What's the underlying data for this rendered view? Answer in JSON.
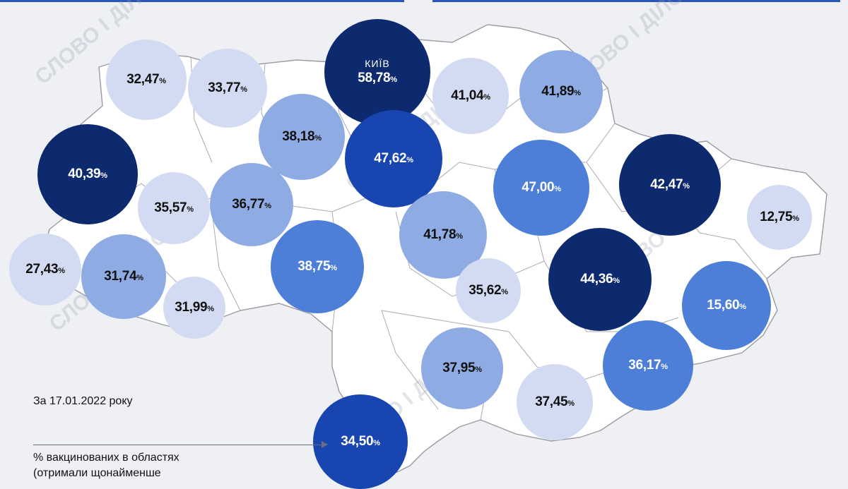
{
  "date_note": "За 17.01.2022 року",
  "legend_text": "% вакцинованих в областях",
  "legend_text_2": "(отримали щонайменше",
  "watermark": "СЛОВО І ДІЛО",
  "colors": {
    "very_light": "#d3dbf2",
    "light": "#8eabe3",
    "medium": "#4d7fd8",
    "dark": "#1845b0",
    "darkest": "#0e2a6e",
    "region_fill": "#ffffff",
    "border": "#9a9ca2"
  },
  "regions": [
    {
      "id": "volynska",
      "value": "32,47",
      "tone": "very_light"
    },
    {
      "id": "rivnenska",
      "value": "33,77",
      "tone": "very_light"
    },
    {
      "id": "kyiv-city",
      "label": "КИЇВ",
      "value": "58,78",
      "tone": "darkest"
    },
    {
      "id": "chernihivska",
      "value": "41,04",
      "tone": "very_light"
    },
    {
      "id": "sumska",
      "value": "41,89",
      "tone": "light"
    },
    {
      "id": "zhytomyrska",
      "value": "38,18",
      "tone": "light"
    },
    {
      "id": "kyivska",
      "value": "47,62",
      "tone": "dark"
    },
    {
      "id": "lvivska",
      "value": "40,39",
      "tone": "darkest"
    },
    {
      "id": "ternopilska",
      "value": "35,57",
      "tone": "very_light"
    },
    {
      "id": "khmelnytska",
      "value": "36,77",
      "tone": "light"
    },
    {
      "id": "poltavska",
      "value": "47,00",
      "tone": "medium"
    },
    {
      "id": "kharkivska",
      "value": "42,47",
      "tone": "darkest"
    },
    {
      "id": "luhanska",
      "value": "12,75",
      "tone": "very_light"
    },
    {
      "id": "cherkaska",
      "value": "41,78",
      "tone": "light"
    },
    {
      "id": "zakarpatska",
      "value": "27,43",
      "tone": "very_light"
    },
    {
      "id": "ivano-frankivska",
      "value": "31,74",
      "tone": "light"
    },
    {
      "id": "vinnytska",
      "value": "38,75",
      "tone": "medium"
    },
    {
      "id": "kirovohradska",
      "value": "35,62",
      "tone": "very_light"
    },
    {
      "id": "dnipropetrovska",
      "value": "44,36",
      "tone": "darkest"
    },
    {
      "id": "donetska",
      "value": "15,60",
      "tone": "medium"
    },
    {
      "id": "chernivetska",
      "value": "31,99",
      "tone": "very_light"
    },
    {
      "id": "mykolaivska",
      "value": "37,95",
      "tone": "light"
    },
    {
      "id": "zaporizka",
      "value": "36,17",
      "tone": "medium"
    },
    {
      "id": "khersonska",
      "value": "37,45",
      "tone": "very_light"
    },
    {
      "id": "odeska",
      "value": "34,50",
      "tone": "dark"
    }
  ]
}
